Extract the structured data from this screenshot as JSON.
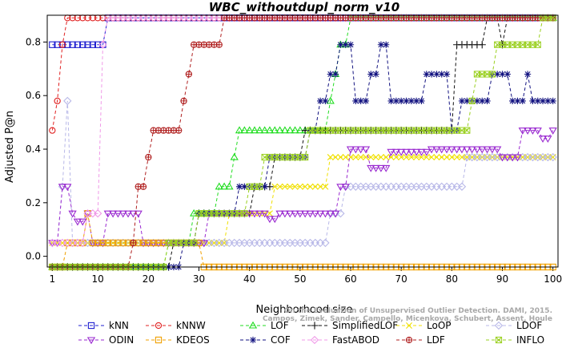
{
  "chart_data": {
    "type": "line",
    "title": "WBC_withoutdupl_norm_v10",
    "xlabel": "Neighborhood size",
    "ylabel": "Adjusted P@n",
    "xlim": [
      0,
      101
    ],
    "ylim": [
      -0.04,
      0.9
    ],
    "xticks": [
      1,
      10,
      20,
      30,
      40,
      50,
      60,
      70,
      80,
      90,
      100
    ],
    "yticks": [
      0.0,
      0.2,
      0.4,
      0.6,
      0.8
    ],
    "grid": false,
    "legend_position": "bottom",
    "credit": [
      "Campos, Zimek, Sander, Campello, Micenkova, Schubert, Assent, Houle",
      "On the Evaluation of Unsupervised Outlier Detection. DAMI, 2015."
    ],
    "series": [
      {
        "name": "kNN",
        "color": "#1f1fd0",
        "marker": "square",
        "points": [
          [
            1,
            0.79
          ],
          [
            11,
            0.79
          ],
          [
            12,
            0.89
          ],
          [
            100,
            0.89
          ]
        ]
      },
      {
        "name": "kNNW",
        "color": "#e02020",
        "marker": "circle",
        "points": [
          [
            1,
            0.47
          ],
          [
            2,
            0.58
          ],
          [
            3,
            0.79
          ],
          [
            4,
            0.89
          ],
          [
            100,
            0.89
          ]
        ]
      },
      {
        "name": "LOF",
        "color": "#22dd22",
        "marker": "triangle-up",
        "points": [
          [
            1,
            -0.04
          ],
          [
            23,
            -0.04
          ],
          [
            24,
            0.05
          ],
          [
            28,
            0.05
          ],
          [
            29,
            0.16
          ],
          [
            33,
            0.16
          ],
          [
            34,
            0.26
          ],
          [
            36,
            0.26
          ],
          [
            37,
            0.37
          ],
          [
            38,
            0.47
          ],
          [
            55,
            0.47
          ],
          [
            56,
            0.58
          ],
          [
            57,
            0.68
          ],
          [
            58,
            0.79
          ],
          [
            59,
            0.79
          ],
          [
            60,
            0.89
          ],
          [
            100,
            0.89
          ]
        ]
      },
      {
        "name": "SimplifiedLOF",
        "color": "#111111",
        "marker": "plus",
        "points": [
          [
            1,
            -0.04
          ],
          [
            24,
            -0.04
          ],
          [
            25,
            0.05
          ],
          [
            29,
            0.05
          ],
          [
            30,
            0.16
          ],
          [
            40,
            0.16
          ],
          [
            41,
            0.26
          ],
          [
            45,
            0.37
          ],
          [
            50,
            0.37
          ],
          [
            51,
            0.47
          ],
          [
            80,
            0.47
          ],
          [
            81,
            0.79
          ],
          [
            86,
            0.79
          ],
          [
            87,
            0.89
          ],
          [
            90,
            0.79
          ],
          [
            91,
            0.89
          ],
          [
            100,
            0.89
          ]
        ]
      },
      {
        "name": "LoOP",
        "color": "#f0e000",
        "marker": "x",
        "points": [
          [
            1,
            0.05
          ],
          [
            35,
            0.05
          ],
          [
            36,
            0.16
          ],
          [
            40,
            0.16
          ],
          [
            45,
            0.26
          ],
          [
            55,
            0.26
          ],
          [
            56,
            0.37
          ],
          [
            100,
            0.37
          ]
        ]
      },
      {
        "name": "LDOF",
        "color": "#b8b8e8",
        "marker": "diamond",
        "points": [
          [
            1,
            0.05
          ],
          [
            3,
            0.26
          ],
          [
            4,
            0.58
          ],
          [
            5,
            0.05
          ],
          [
            40,
            0.05
          ],
          [
            55,
            0.05
          ],
          [
            56,
            0.16
          ],
          [
            58,
            0.16
          ],
          [
            59,
            0.26
          ],
          [
            82,
            0.26
          ],
          [
            83,
            0.37
          ],
          [
            100,
            0.37
          ]
        ]
      },
      {
        "name": "ODIN",
        "color": "#9a2ad0",
        "marker": "triangle-down",
        "points": [
          [
            1,
            0.05
          ],
          [
            3,
            0.26
          ],
          [
            4,
            0.26
          ],
          [
            5,
            0.16
          ],
          [
            6,
            0.13
          ],
          [
            8,
            0.16
          ],
          [
            9,
            0.05
          ],
          [
            12,
            0.16
          ],
          [
            18,
            0.16
          ],
          [
            19,
            0.05
          ],
          [
            28,
            0.05
          ],
          [
            32,
            0.16
          ],
          [
            42,
            0.16
          ],
          [
            44,
            0.14
          ],
          [
            46,
            0.16
          ],
          [
            56,
            0.16
          ],
          [
            58,
            0.26
          ],
          [
            60,
            0.4
          ],
          [
            64,
            0.33
          ],
          [
            68,
            0.39
          ],
          [
            72,
            0.39
          ],
          [
            76,
            0.4
          ],
          [
            79,
            0.4
          ],
          [
            82,
            0.4
          ],
          [
            86,
            0.4
          ],
          [
            90,
            0.37
          ],
          [
            94,
            0.47
          ],
          [
            98,
            0.44
          ],
          [
            100,
            0.47
          ]
        ]
      },
      {
        "name": "KDEOS",
        "color": "#f0a000",
        "marker": "square",
        "points": [
          [
            1,
            -0.04
          ],
          [
            4,
            0.05
          ],
          [
            8,
            0.16
          ],
          [
            9,
            0.05
          ],
          [
            30,
            0.05
          ],
          [
            31,
            -0.04
          ],
          [
            100,
            -0.04
          ]
        ]
      },
      {
        "name": "COF",
        "color": "#121280",
        "marker": "star",
        "points": [
          [
            1,
            -0.04
          ],
          [
            26,
            -0.04
          ],
          [
            27,
            0.05
          ],
          [
            29,
            0.05
          ],
          [
            30,
            0.16
          ],
          [
            36,
            0.16
          ],
          [
            38,
            0.26
          ],
          [
            42,
            0.26
          ],
          [
            44,
            0.37
          ],
          [
            52,
            0.47
          ],
          [
            54,
            0.58
          ],
          [
            56,
            0.68
          ],
          [
            58,
            0.79
          ],
          [
            61,
            0.58
          ],
          [
            64,
            0.68
          ],
          [
            66,
            0.79
          ],
          [
            68,
            0.58
          ],
          [
            75,
            0.68
          ],
          [
            80,
            0.47
          ],
          [
            82,
            0.58
          ],
          [
            86,
            0.58
          ],
          [
            88,
            0.68
          ],
          [
            90,
            0.68
          ],
          [
            92,
            0.58
          ],
          [
            95,
            0.68
          ],
          [
            96,
            0.58
          ],
          [
            100,
            0.58
          ]
        ]
      },
      {
        "name": "FastABOD",
        "color": "#f09ae8",
        "marker": "diamond",
        "points": [
          [
            1,
            0.05
          ],
          [
            8,
            0.16
          ],
          [
            11,
            0.79
          ],
          [
            12,
            0.89
          ],
          [
            100,
            0.89
          ]
        ]
      },
      {
        "name": "LDF",
        "color": "#b02020",
        "marker": "circle-plus",
        "points": [
          [
            1,
            -0.04
          ],
          [
            17,
            0.05
          ],
          [
            18,
            0.26
          ],
          [
            20,
            0.37
          ],
          [
            21,
            0.47
          ],
          [
            26,
            0.47
          ],
          [
            27,
            0.58
          ],
          [
            28,
            0.68
          ],
          [
            29,
            0.79
          ],
          [
            34,
            0.79
          ],
          [
            35,
            0.89
          ],
          [
            100,
            0.89
          ]
        ]
      },
      {
        "name": "INFLO",
        "color": "#9ad020",
        "marker": "hex",
        "points": [
          [
            1,
            -0.04
          ],
          [
            23,
            -0.04
          ],
          [
            24,
            0.05
          ],
          [
            29,
            0.05
          ],
          [
            30,
            0.16
          ],
          [
            37,
            0.16
          ],
          [
            40,
            0.26
          ],
          [
            43,
            0.37
          ],
          [
            50,
            0.37
          ],
          [
            52,
            0.47
          ],
          [
            57,
            0.47
          ],
          [
            60,
            0.47
          ],
          [
            80,
            0.47
          ],
          [
            84,
            0.58
          ],
          [
            85,
            0.68
          ],
          [
            88,
            0.68
          ],
          [
            89,
            0.79
          ],
          [
            97,
            0.79
          ],
          [
            98,
            0.89
          ],
          [
            100,
            0.89
          ]
        ]
      }
    ]
  }
}
